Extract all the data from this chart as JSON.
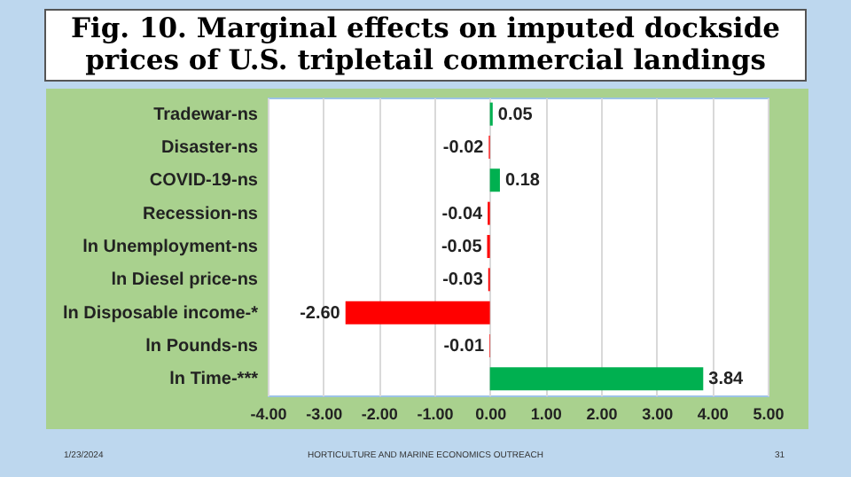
{
  "chart_data": {
    "type": "bar",
    "orientation": "horizontal",
    "title": "Fig. 10. Marginal effects on imputed dockside prices of U.S. tripletail commercial landings",
    "categories": [
      "Tradewar-ns",
      "Disaster-ns",
      "COVID-19-ns",
      "Recession-ns",
      "ln Unemployment-ns",
      "ln Diesel price-ns",
      "ln Disposable income-*",
      "ln Pounds-ns",
      "ln Time-***"
    ],
    "values": [
      0.05,
      -0.02,
      0.18,
      -0.04,
      -0.05,
      -0.03,
      -2.6,
      -0.01,
      3.84
    ],
    "colors": [
      "#00b050",
      "#ff0000",
      "#00b050",
      "#ff0000",
      "#ff0000",
      "#ff0000",
      "#ff0000",
      "#ff0000",
      "#00b050"
    ],
    "value_labels": [
      "0.05",
      "-0.02",
      "0.18",
      "-0.04",
      "-0.05",
      "-0.03",
      "-2.60",
      "-0.01",
      "3.84"
    ],
    "xlim": [
      -4,
      5
    ],
    "xticks": [
      {
        "value": -4,
        "label": "-4.00"
      },
      {
        "value": -3,
        "label": "-3.00"
      },
      {
        "value": -2,
        "label": "-2.00"
      },
      {
        "value": -1,
        "label": "-1.00"
      },
      {
        "value": 0,
        "label": "0.00"
      },
      {
        "value": 1,
        "label": "1.00"
      },
      {
        "value": 2,
        "label": "2.00"
      },
      {
        "value": 3,
        "label": "3.00"
      },
      {
        "value": 4,
        "label": "4.00"
      },
      {
        "value": 5,
        "label": "5.00"
      }
    ],
    "grid": "x",
    "annotations": [
      "1/23/2024",
      "HORTICULTURE AND MARINE ECONOMICS OUTREACH",
      "31"
    ]
  }
}
